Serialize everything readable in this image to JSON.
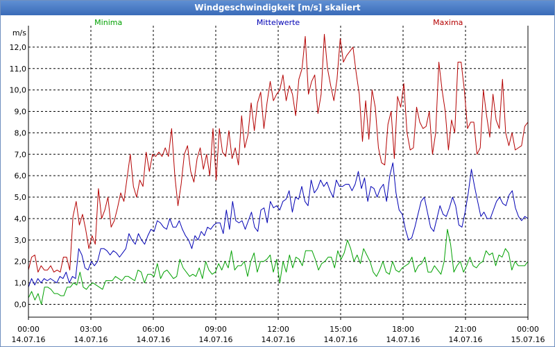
{
  "window": {
    "title": "Windgeschwindigkeit [m/s] skaliert"
  },
  "chart_data": {
    "type": "line",
    "title": "Windgeschwindigkeit [m/s] skaliert",
    "ylabel": "m/s",
    "xlabel": "",
    "ylim": [
      -0.6,
      13.0
    ],
    "xlim": [
      0,
      24
    ],
    "grid": true,
    "yticks": [
      "0,0",
      "1,0",
      "2,0",
      "3,0",
      "4,0",
      "5,0",
      "6,0",
      "7,0",
      "8,0",
      "9,0",
      "10,0",
      "11,0",
      "12,0"
    ],
    "xticks": [
      {
        "time": "00:00",
        "date": "14.07.16"
      },
      {
        "time": "03:00",
        "date": "14.07.16"
      },
      {
        "time": "06:00",
        "date": "14.07.16"
      },
      {
        "time": "09:00",
        "date": "14.07.16"
      },
      {
        "time": "12:00",
        "date": "14.07.16"
      },
      {
        "time": "15:00",
        "date": "14.07.16"
      },
      {
        "time": "18:00",
        "date": "14.07.16"
      },
      {
        "time": "21:00",
        "date": "14.07.16"
      },
      {
        "time": "00:00",
        "date": "15.07.16"
      }
    ],
    "legend": [
      "Minima",
      "Mittelwerte",
      "Maxima"
    ],
    "series": [
      {
        "name": "Minima",
        "color": "#00a000",
        "values": [
          0.3,
          0.6,
          0.2,
          0.5,
          0.0,
          0.8,
          0.8,
          0.7,
          0.5,
          0.5,
          0.4,
          0.4,
          0.8,
          0.8,
          1.0,
          0.9,
          1.5,
          0.8,
          0.7,
          0.9,
          1.0,
          0.9,
          0.8,
          0.7,
          1.1,
          1.1,
          1.1,
          1.3,
          1.2,
          1.1,
          1.3,
          1.3,
          1.2,
          1.1,
          1.6,
          1.5,
          1.0,
          1.4,
          1.4,
          1.3,
          1.9,
          1.2,
          1.5,
          1.6,
          1.4,
          1.2,
          1.3,
          2.1,
          1.7,
          1.5,
          1.3,
          1.4,
          1.3,
          1.7,
          1.2,
          2.0,
          1.6,
          1.4,
          1.5,
          1.9,
          1.6,
          2.0,
          1.7,
          2.5,
          1.6,
          1.8,
          1.8,
          2.0,
          1.3,
          2.0,
          2.4,
          1.5,
          2.0,
          2.0,
          2.1,
          2.3,
          1.5,
          2.1,
          1.0,
          2.0,
          1.5,
          2.3,
          1.7,
          2.2,
          2.1,
          1.8,
          2.5,
          2.5,
          2.5,
          2.1,
          1.6,
          1.9,
          2.0,
          2.2,
          2.2,
          1.7,
          2.5,
          2.1,
          2.4,
          3.0,
          2.6,
          2.0,
          2.3,
          1.9,
          2.6,
          2.3,
          2.0,
          1.5,
          1.3,
          1.6,
          2.0,
          1.5,
          1.4,
          2.0,
          1.6,
          1.5,
          1.7,
          1.8,
          1.9,
          2.2,
          1.5,
          1.8,
          1.9,
          2.2,
          1.5,
          1.5,
          1.8,
          1.6,
          1.4,
          2.0,
          3.5,
          2.8,
          1.5,
          1.8,
          2.0,
          1.5,
          1.8,
          2.2,
          1.8,
          1.7,
          1.9,
          2.0,
          2.5,
          2.3,
          2.4,
          1.8,
          2.3,
          2.2,
          2.6,
          2.4,
          1.6,
          2.0,
          1.8,
          1.8,
          1.8,
          2.0
        ]
      },
      {
        "name": "Mittelwerte",
        "color": "#0000b4",
        "values": [
          0.8,
          1.2,
          0.9,
          1.2,
          1.0,
          1.2,
          1.1,
          1.2,
          1.1,
          1.0,
          1.3,
          1.2,
          1.5,
          1.0,
          1.3,
          1.2,
          2.6,
          2.3,
          1.7,
          1.6,
          2.0,
          1.8,
          2.0,
          2.6,
          2.6,
          2.5,
          2.3,
          2.5,
          2.4,
          2.2,
          2.4,
          2.6,
          3.3,
          3.0,
          2.8,
          3.3,
          3.0,
          2.8,
          3.2,
          3.5,
          3.4,
          3.9,
          3.8,
          3.6,
          3.5,
          4.0,
          3.6,
          3.6,
          3.9,
          3.5,
          3.2,
          3.0,
          2.6,
          3.2,
          3.0,
          3.4,
          3.2,
          3.6,
          3.5,
          3.7,
          3.8,
          3.8,
          3.3,
          4.4,
          3.5,
          4.8,
          3.9,
          3.8,
          3.9,
          3.5,
          3.9,
          4.3,
          3.6,
          3.4,
          4.4,
          4.5,
          3.8,
          4.8,
          4.5,
          4.6,
          4.4,
          4.8,
          4.9,
          5.3,
          4.3,
          5.0,
          4.9,
          5.5,
          4.8,
          4.6,
          5.8,
          5.2,
          5.4,
          5.8,
          5.5,
          5.7,
          5.3,
          5.0,
          5.8,
          5.5,
          5.5,
          5.6,
          5.6,
          5.3,
          5.6,
          6.2,
          5.4,
          5.9,
          4.8,
          5.5,
          5.4,
          5.0,
          5.4,
          5.6,
          4.8,
          6.0,
          6.6,
          5.2,
          4.4,
          4.2,
          3.5,
          3.0,
          3.1,
          3.6,
          4.2,
          4.8,
          5.0,
          4.3,
          3.6,
          3.4,
          4.0,
          4.6,
          4.2,
          4.1,
          4.5,
          5.0,
          4.6,
          3.7,
          3.6,
          4.3,
          5.2,
          6.3,
          5.5,
          4.8,
          4.1,
          4.3,
          4.0,
          4.0,
          4.4,
          4.8,
          5.0,
          4.7,
          4.6,
          5.1,
          5.3,
          4.5,
          4.1,
          3.9,
          4.1,
          4.0
        ]
      },
      {
        "name": "Maxima",
        "color": "#b40000",
        "values": [
          1.6,
          2.2,
          2.3,
          1.5,
          1.8,
          1.6,
          1.6,
          1.8,
          1.5,
          1.6,
          1.5,
          2.2,
          2.2,
          1.6,
          4.1,
          4.8,
          3.7,
          4.2,
          3.5,
          2.6,
          3.2,
          2.8,
          5.4,
          4.0,
          4.4,
          5.0,
          3.6,
          3.9,
          4.5,
          5.2,
          4.8,
          5.9,
          7.0,
          5.5,
          5.0,
          5.8,
          5.5,
          7.1,
          6.2,
          7.0,
          6.9,
          7.1,
          6.9,
          7.3,
          6.9,
          8.2,
          6.0,
          4.6,
          5.6,
          7.0,
          7.4,
          6.2,
          5.7,
          6.8,
          7.3,
          6.3,
          7.0,
          6.0,
          8.2,
          5.8,
          8.2,
          7.1,
          6.9,
          8.1,
          6.8,
          7.3,
          6.5,
          8.8,
          7.3,
          7.9,
          9.4,
          8.1,
          9.4,
          9.9,
          8.2,
          9.4,
          10.4,
          9.5,
          9.8,
          10.0,
          10.7,
          9.5,
          10.2,
          9.8,
          8.8,
          10.5,
          11.0,
          12.5,
          9.8,
          10.4,
          10.7,
          8.9,
          9.8,
          12.6,
          11.0,
          10.2,
          9.5,
          10.5,
          12.4,
          11.3,
          11.6,
          11.8,
          12.0,
          10.8,
          9.8,
          7.6,
          9.5,
          7.7,
          10.0,
          9.2,
          7.3,
          6.6,
          6.5,
          8.4,
          9.0,
          6.8,
          9.7,
          9.2,
          10.3,
          8.0,
          7.2,
          7.3,
          9.2,
          8.5,
          8.2,
          8.3,
          9.0,
          7.0,
          8.0,
          11.3,
          10.0,
          9.0,
          7.2,
          8.6,
          8.0,
          11.3,
          11.3,
          10.0,
          8.2,
          8.5,
          8.5,
          7.0,
          7.3,
          10.0,
          8.8,
          7.8,
          9.8,
          8.6,
          8.2,
          10.5,
          8.0,
          7.4,
          8.0,
          7.2,
          7.3,
          7.4,
          8.3,
          8.5
        ]
      }
    ]
  }
}
